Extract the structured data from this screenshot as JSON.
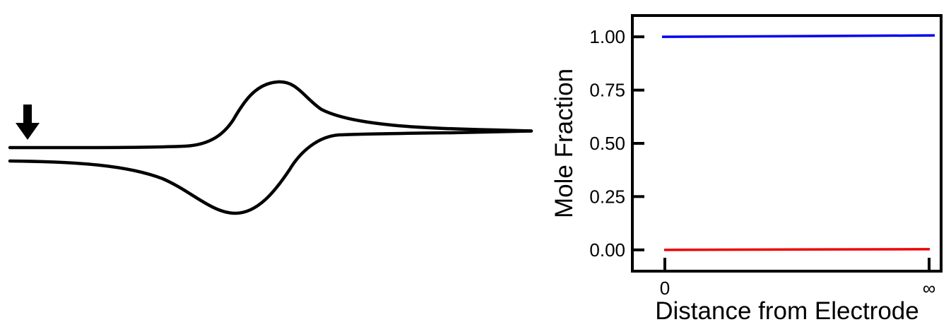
{
  "chart_data": [
    {
      "type": "line",
      "title": "",
      "xlabel": "",
      "ylabel": "",
      "axes_visible": false,
      "marker": "down-arrow",
      "series": [
        {
          "color": "#000000",
          "description_points": "cyclic voltammogram: forward sweep with anodic peak, reverse sweep with cathodic peak"
        }
      ]
    },
    {
      "type": "line",
      "title": "",
      "xlabel": "Distance from Electrode",
      "ylabel": "Mole Fraction",
      "ylim": [
        -0.1,
        1.1
      ],
      "yticks": [
        "0.00",
        "0.25",
        "0.50",
        "0.75",
        "1.00"
      ],
      "xticks": [
        "0",
        "∞"
      ],
      "grid": false,
      "series": [
        {
          "color": "#0000ee",
          "x": [
            "0",
            "∞"
          ],
          "values": [
            1.0,
            1.0
          ]
        },
        {
          "color": "#ee0000",
          "x": [
            "0",
            "∞"
          ],
          "values": [
            0.0,
            0.0
          ]
        }
      ]
    }
  ]
}
